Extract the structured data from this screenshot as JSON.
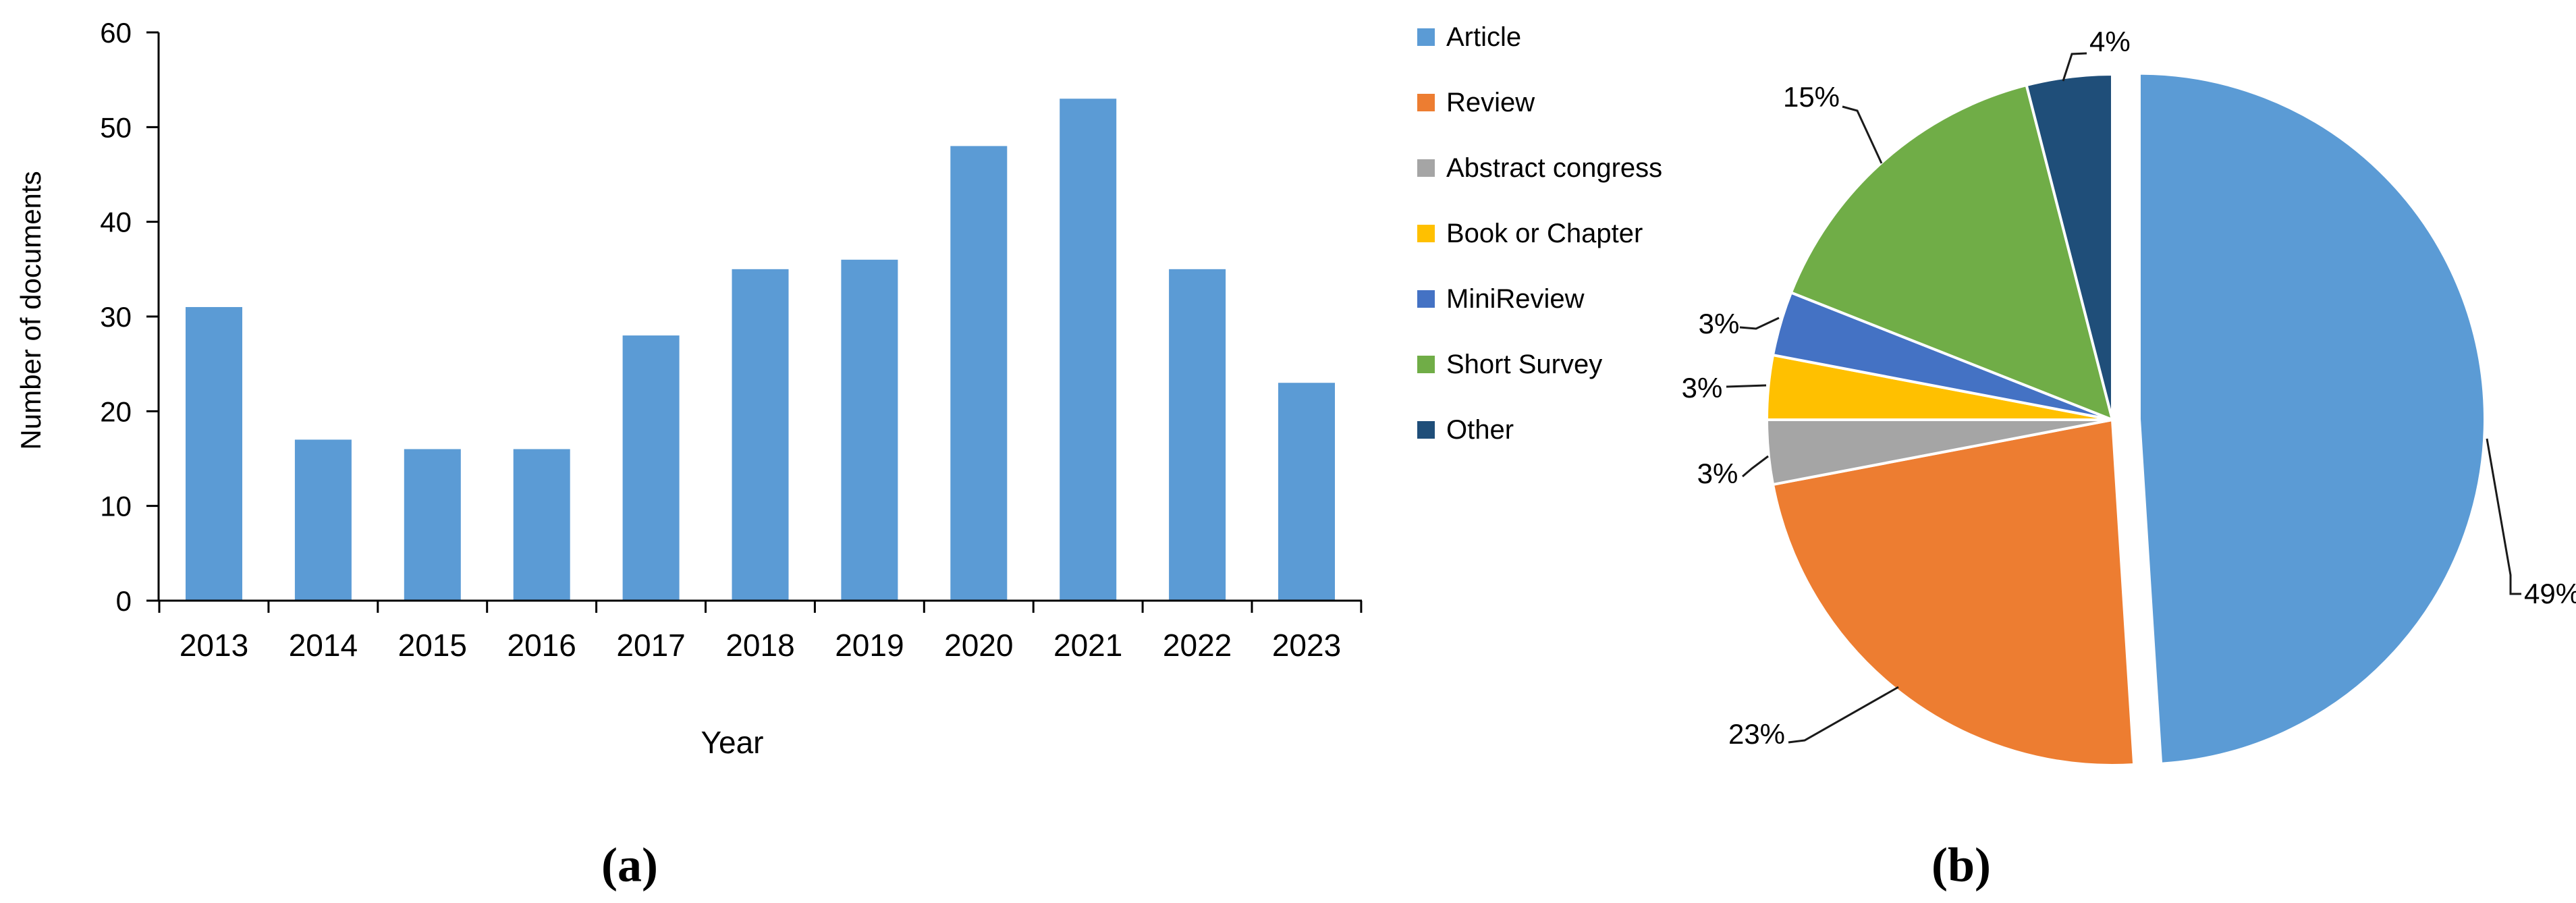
{
  "figure": {
    "caption_a": "(a)",
    "caption_b": "(b)"
  },
  "chart_data": [
    {
      "type": "bar",
      "panel": "a",
      "title": "",
      "xlabel": "Year",
      "ylabel": "Number of documents",
      "categories": [
        "2013",
        "2014",
        "2015",
        "2016",
        "2017",
        "2018",
        "2019",
        "2020",
        "2021",
        "2022",
        "2023"
      ],
      "values": [
        31,
        17,
        16,
        16,
        28,
        35,
        36,
        48,
        53,
        35,
        23
      ],
      "ylim": [
        0,
        60
      ],
      "ytick_step": 10,
      "bar_color": "#5B9BD5",
      "axis_color": "#000000",
      "grid": false,
      "legend_position": "none"
    },
    {
      "type": "pie",
      "panel": "b",
      "title": "",
      "legend_position": "left",
      "start_angle_deg": 0,
      "direction": "clockwise",
      "slices": [
        {
          "label": "Article",
          "pct": 49,
          "pct_label": "49%",
          "color": "#5B9BD5",
          "exploded": true
        },
        {
          "label": "Review",
          "pct": 23,
          "pct_label": "23%",
          "color": "#ED7D31",
          "exploded": false
        },
        {
          "label": "Abstract congress",
          "pct": 3,
          "pct_label": "3%",
          "color": "#A5A5A5",
          "exploded": false
        },
        {
          "label": "Book or Chapter",
          "pct": 3,
          "pct_label": "3%",
          "color": "#FFC000",
          "exploded": false
        },
        {
          "label": "MiniReview",
          "pct": 3,
          "pct_label": "3%",
          "color": "#4472C4",
          "exploded": false
        },
        {
          "label": "Short Survey",
          "pct": 15,
          "pct_label": "15%",
          "color": "#70AD47",
          "exploded": false
        },
        {
          "label": "Other",
          "pct": 4,
          "pct_label": "4%",
          "color": "#1F4E79",
          "exploded": false
        }
      ]
    }
  ]
}
